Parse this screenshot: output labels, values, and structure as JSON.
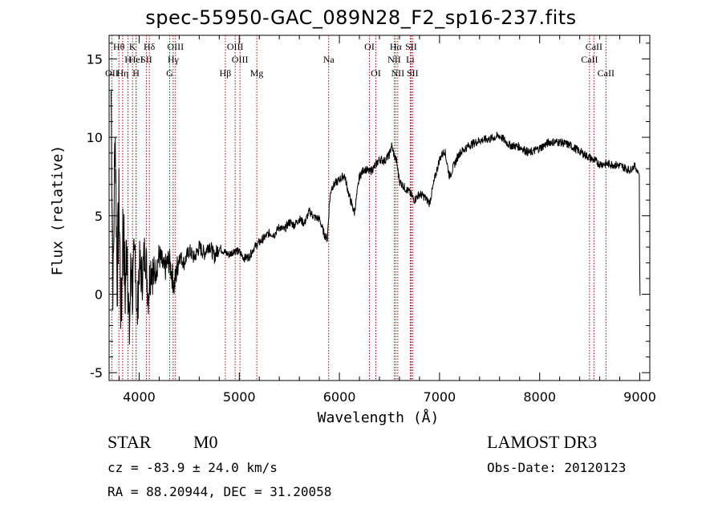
{
  "header": {
    "title": "spec-55950-GAC_089N28_F2_sp16-237.fits"
  },
  "info": {
    "class": "STAR",
    "subclass": "M0",
    "velocity": "cz = -83.9 ± 24.0 km/s",
    "coords": "RA =  88.20944, DEC =  31.20058",
    "survey": "LAMOST DR3",
    "obs_date": "Obs-Date: 20120123"
  },
  "chart_data": {
    "type": "line",
    "title": "spec-55950-GAC_089N28_F2_sp16-237.fits",
    "xlabel": "Wavelength (Å)",
    "ylabel": "Flux (relative)",
    "xlim": [
      3700,
      9100
    ],
    "ylim": [
      -5.5,
      16.5
    ],
    "xticks": [
      4000,
      5000,
      6000,
      7000,
      8000,
      9000
    ],
    "xtick_labels": [
      "4000",
      "5000",
      "6000",
      "7000",
      "8000",
      "9000"
    ],
    "yticks": [
      -5,
      0,
      5,
      10,
      15
    ],
    "ytick_labels": [
      "-5",
      "0",
      "5",
      "10",
      "15"
    ],
    "series": [
      {
        "name": "flux",
        "x": [
          3720,
          3740,
          3760,
          3780,
          3800,
          3820,
          3840,
          3860,
          3880,
          3900,
          3920,
          3940,
          3960,
          3980,
          4000,
          4030,
          4060,
          4090,
          4120,
          4150,
          4200,
          4250,
          4300,
          4350,
          4400,
          4450,
          4500,
          4550,
          4600,
          4650,
          4700,
          4750,
          4800,
          4850,
          4900,
          4950,
          5000,
          5050,
          5100,
          5150,
          5200,
          5250,
          5300,
          5350,
          5400,
          5450,
          5500,
          5550,
          5600,
          5650,
          5700,
          5750,
          5800,
          5850,
          5880,
          5900,
          5920,
          5950,
          6000,
          6050,
          6100,
          6150,
          6200,
          6250,
          6300,
          6350,
          6400,
          6450,
          6500,
          6520,
          6550,
          6570,
          6600,
          6650,
          6700,
          6750,
          6800,
          6850,
          6900,
          6950,
          7000,
          7050,
          7100,
          7150,
          7200,
          7300,
          7400,
          7500,
          7600,
          7700,
          7800,
          7900,
          8000,
          8100,
          8200,
          8300,
          8400,
          8500,
          8600,
          8700,
          8800,
          8900,
          8950,
          8980,
          9000,
          9005
        ],
        "values": [
          13,
          0,
          11,
          1,
          6,
          -2,
          5,
          0,
          4,
          -3,
          2,
          0,
          3,
          -2,
          2,
          1,
          3,
          0,
          2,
          1,
          2.5,
          1.5,
          2.2,
          0.5,
          2.5,
          2,
          2.8,
          2.3,
          3.0,
          2.6,
          3.2,
          2.4,
          3.0,
          2.7,
          2.5,
          2.8,
          2.7,
          2.3,
          2.4,
          3.0,
          3.3,
          3.6,
          3.9,
          3.8,
          4.3,
          4.1,
          4.6,
          4.4,
          4.8,
          4.5,
          5.3,
          4.9,
          4.8,
          3.8,
          3.5,
          5.8,
          6.8,
          7.0,
          7.3,
          7.6,
          6.2,
          5.2,
          7.5,
          8.0,
          7.8,
          8.1,
          8.6,
          8.5,
          8.9,
          9.5,
          8.8,
          8.5,
          7.2,
          6.8,
          6.5,
          6.0,
          6.4,
          6.2,
          5.8,
          7.3,
          8.6,
          9.2,
          7.5,
          8.3,
          9.0,
          9.5,
          9.8,
          9.9,
          10.1,
          9.5,
          9.4,
          9.0,
          9.3,
          9.7,
          9.7,
          9.5,
          9.1,
          8.7,
          8.3,
          8.3,
          8.2,
          7.9,
          8.2,
          7.8,
          7.6,
          0
        ]
      }
    ],
    "line_markers": [
      {
        "label": "Hθ",
        "wavelength": 3798,
        "row": 1
      },
      {
        "label": "OII",
        "wavelength": 3727,
        "row": 3
      },
      {
        "label": "Hη",
        "wavelength": 3835,
        "row": 3
      },
      {
        "label": "H",
        "wavelength": 3889,
        "row": 2
      },
      {
        "label": "K",
        "wavelength": 3934,
        "row": 1
      },
      {
        "label": "HeI",
        "wavelength": 3970,
        "row": 2
      },
      {
        "label": "H",
        "wavelength": 3969,
        "row": 3
      },
      {
        "label": "Hδ",
        "wavelength": 4102,
        "row": 1
      },
      {
        "label": "SII",
        "wavelength": 4072,
        "row": 2
      },
      {
        "label": "OIII",
        "wavelength": 4363,
        "row": 1
      },
      {
        "label": "Hγ",
        "wavelength": 4340,
        "row": 2
      },
      {
        "label": "G",
        "wavelength": 4305,
        "row": 3
      },
      {
        "label": "Hβ",
        "wavelength": 4861,
        "row": 3
      },
      {
        "label": "OIII",
        "wavelength": 4959,
        "row": 1
      },
      {
        "label": "OIII",
        "wavelength": 5007,
        "row": 2
      },
      {
        "label": "Mg",
        "wavelength": 5175,
        "row": 3
      },
      {
        "label": "Na",
        "wavelength": 5893,
        "row": 2
      },
      {
        "label": "OI",
        "wavelength": 6300,
        "row": 1
      },
      {
        "label": "OI",
        "wavelength": 6364,
        "row": 3
      },
      {
        "label": "Hα",
        "wavelength": 6563,
        "row": 1
      },
      {
        "label": "NII",
        "wavelength": 6548,
        "row": 2
      },
      {
        "label": "NII",
        "wavelength": 6583,
        "row": 3
      },
      {
        "label": "SII",
        "wavelength": 6716,
        "row": 1
      },
      {
        "label": "Li",
        "wavelength": 6708,
        "row": 2
      },
      {
        "label": "SII",
        "wavelength": 6731,
        "row": 3
      },
      {
        "label": "CaII",
        "wavelength": 8542,
        "row": 1
      },
      {
        "label": "CaII",
        "wavelength": 8498,
        "row": 2
      },
      {
        "label": "CaII",
        "wavelength": 8662,
        "row": 3
      }
    ]
  }
}
